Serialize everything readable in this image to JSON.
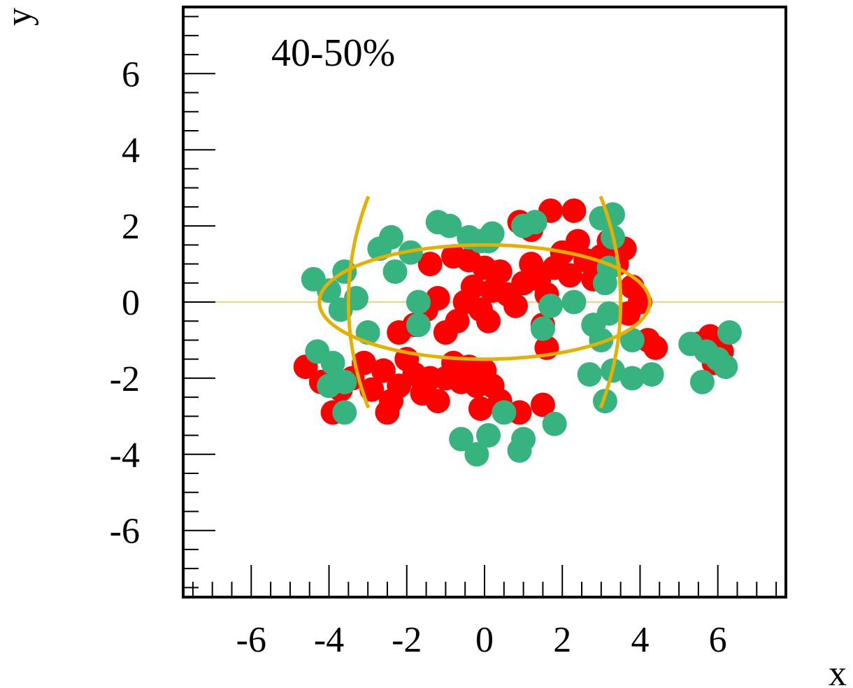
{
  "chart_data": {
    "type": "scatter",
    "title": "",
    "annotation": "40-50%",
    "xlabel": "x",
    "ylabel": "y",
    "xlim": [
      -7.75,
      7.75
    ],
    "ylim": [
      -7.75,
      7.75
    ],
    "xticks": [
      -6,
      -4,
      -2,
      0,
      2,
      4,
      6
    ],
    "yticks": [
      -6,
      -4,
      -2,
      0,
      2,
      4,
      6
    ],
    "xtick_labels": [
      "-6",
      "-4",
      "-2",
      "0",
      "2",
      "4",
      "6"
    ],
    "ytick_labels": [
      "6",
      "4",
      "2",
      "0",
      "-2",
      "-4",
      "-6"
    ],
    "grid": false,
    "colors": {
      "nucleus_a": "#ff0000",
      "nucleus_b": "#36b37e",
      "overlap_curve": "#e6b000",
      "baseline": "#e6c84a",
      "frame": "#000000"
    },
    "series": [
      {
        "color": "#ff0000",
        "points": [
          [
            -4.6,
            -1.7
          ],
          [
            -4.2,
            -2.1
          ],
          [
            -3.9,
            -2.9
          ],
          [
            -3.7,
            -2.3
          ],
          [
            -3.4,
            -2.0
          ],
          [
            -3.1,
            -1.6
          ],
          [
            -2.9,
            -2.3
          ],
          [
            -2.6,
            -1.8
          ],
          [
            -2.4,
            -2.6
          ],
          [
            -2.2,
            -2.2
          ],
          [
            -2.0,
            -1.5
          ],
          [
            -1.8,
            -1.9
          ],
          [
            -1.6,
            -2.4
          ],
          [
            -1.4,
            -2.0
          ],
          [
            -1.2,
            -2.6
          ],
          [
            -1.0,
            -2.0
          ],
          [
            -0.8,
            -1.6
          ],
          [
            -0.6,
            -2.1
          ],
          [
            -0.4,
            -1.7
          ],
          [
            -0.2,
            -2.2
          ],
          [
            0.0,
            -1.8
          ],
          [
            0.2,
            -2.2
          ],
          [
            -0.1,
            -2.8
          ],
          [
            0.4,
            -2.6
          ],
          [
            0.9,
            -2.9
          ],
          [
            1.5,
            -2.7
          ],
          [
            -2.5,
            -2.9
          ],
          [
            -2.2,
            -0.8
          ],
          [
            -1.8,
            -0.6
          ],
          [
            -1.5,
            -0.2
          ],
          [
            -1.2,
            0.1
          ],
          [
            -1.0,
            -0.8
          ],
          [
            -0.7,
            -0.5
          ],
          [
            -0.5,
            0.0
          ],
          [
            -0.3,
            0.4
          ],
          [
            -0.1,
            -0.2
          ],
          [
            0.1,
            -0.5
          ],
          [
            0.2,
            0.3
          ],
          [
            0.4,
            0.8
          ],
          [
            0.6,
            0.2
          ],
          [
            0.8,
            -0.1
          ],
          [
            1.0,
            0.5
          ],
          [
            1.2,
            1.0
          ],
          [
            1.4,
            0.6
          ],
          [
            1.6,
            0.2
          ],
          [
            1.8,
            0.9
          ],
          [
            2.0,
            1.3
          ],
          [
            2.2,
            0.7
          ],
          [
            2.4,
            1.6
          ],
          [
            2.6,
            1.1
          ],
          [
            2.8,
            0.6
          ],
          [
            3.0,
            1.2
          ],
          [
            3.2,
            1.6
          ],
          [
            3.4,
            1.0
          ],
          [
            3.6,
            1.4
          ],
          [
            3.8,
            0.4
          ],
          [
            4.0,
            0.0
          ],
          [
            3.7,
            -0.3
          ],
          [
            4.2,
            -1.0
          ],
          [
            4.4,
            -1.2
          ],
          [
            1.7,
            2.4
          ],
          [
            2.3,
            2.4
          ],
          [
            1.2,
            1.9
          ],
          [
            0.9,
            2.1
          ],
          [
            1.5,
            -0.6
          ],
          [
            1.6,
            -1.2
          ],
          [
            -1.4,
            1.0
          ],
          [
            -0.8,
            1.2
          ],
          [
            -0.4,
            1.1
          ],
          [
            0.0,
            0.9
          ],
          [
            5.5,
            -1.1
          ],
          [
            5.8,
            -0.9
          ],
          [
            6.1,
            -1.3
          ],
          [
            5.9,
            -1.6
          ]
        ]
      },
      {
        "color": "#36b37e",
        "points": [
          [
            -4.4,
            0.6
          ],
          [
            -4.0,
            0.3
          ],
          [
            -3.6,
            0.8
          ],
          [
            -3.3,
            0.1
          ],
          [
            -3.7,
            -0.2
          ],
          [
            -3.0,
            -0.8
          ],
          [
            -4.3,
            -1.3
          ],
          [
            -3.9,
            -1.6
          ],
          [
            -4.0,
            -2.2
          ],
          [
            -3.6,
            -2.1
          ],
          [
            -3.6,
            -2.9
          ],
          [
            -2.7,
            1.4
          ],
          [
            -2.4,
            1.7
          ],
          [
            -2.3,
            0.8
          ],
          [
            -1.9,
            1.3
          ],
          [
            -1.7,
            0.0
          ],
          [
            -1.7,
            -0.6
          ],
          [
            -1.2,
            2.1
          ],
          [
            -0.9,
            2.0
          ],
          [
            -0.4,
            1.7
          ],
          [
            -0.1,
            1.6
          ],
          [
            0.2,
            1.8
          ],
          [
            0.1,
            1.6
          ],
          [
            1.0,
            2.0
          ],
          [
            1.3,
            2.1
          ],
          [
            3.0,
            2.2
          ],
          [
            3.3,
            2.3
          ],
          [
            3.3,
            1.7
          ],
          [
            3.2,
            0.9
          ],
          [
            3.1,
            0.5
          ],
          [
            3.2,
            -0.3
          ],
          [
            2.8,
            -0.6
          ],
          [
            3.0,
            -1.0
          ],
          [
            2.3,
            0.0
          ],
          [
            1.7,
            -0.1
          ],
          [
            1.5,
            -0.7
          ],
          [
            3.8,
            -1.0
          ],
          [
            2.7,
            -1.9
          ],
          [
            3.3,
            -1.8
          ],
          [
            3.8,
            -2.0
          ],
          [
            4.3,
            -1.9
          ],
          [
            3.1,
            -2.6
          ],
          [
            -0.6,
            -3.6
          ],
          [
            -0.2,
            -4.0
          ],
          [
            0.1,
            -3.5
          ],
          [
            0.5,
            -2.9
          ],
          [
            1.0,
            -3.6
          ],
          [
            1.8,
            -3.2
          ],
          [
            0.9,
            -3.9
          ],
          [
            5.3,
            -1.1
          ],
          [
            5.7,
            -1.3
          ],
          [
            6.0,
            -1.5
          ],
          [
            5.6,
            -2.1
          ],
          [
            6.2,
            -1.7
          ],
          [
            6.3,
            -0.8
          ]
        ]
      }
    ],
    "curves": [
      {
        "name": "arc-left",
        "cx": 4.25,
        "r": 7.75,
        "theta_deg": 21
      },
      {
        "name": "arc-right",
        "cx": -4.25,
        "r": 7.75,
        "theta_deg": 21
      },
      {
        "name": "ellipse",
        "rx": 4.25,
        "ry": 1.5
      }
    ]
  }
}
